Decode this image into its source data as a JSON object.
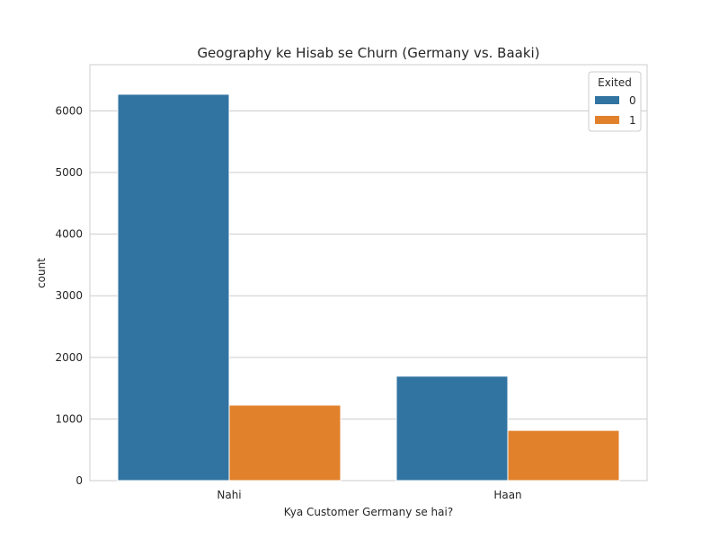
{
  "chart_data": {
    "type": "bar",
    "title": "Geography ke Hisab se Churn (Germany vs. Baaki)",
    "xlabel": "Kya Customer Germany se hai?",
    "ylabel": "count",
    "categories": [
      "Nahi",
      "Haan"
    ],
    "series": [
      {
        "name": "0",
        "values": [
          6270,
          1695
        ],
        "color": "#3274a1"
      },
      {
        "name": "1",
        "values": [
          1225,
          815
        ],
        "color": "#e1812c"
      }
    ],
    "ylim": [
      0,
      6750
    ],
    "yticks": [
      0,
      1000,
      2000,
      3000,
      4000,
      5000,
      6000
    ],
    "grid": true,
    "legend": {
      "title": "Exited",
      "position": "top-right"
    }
  }
}
